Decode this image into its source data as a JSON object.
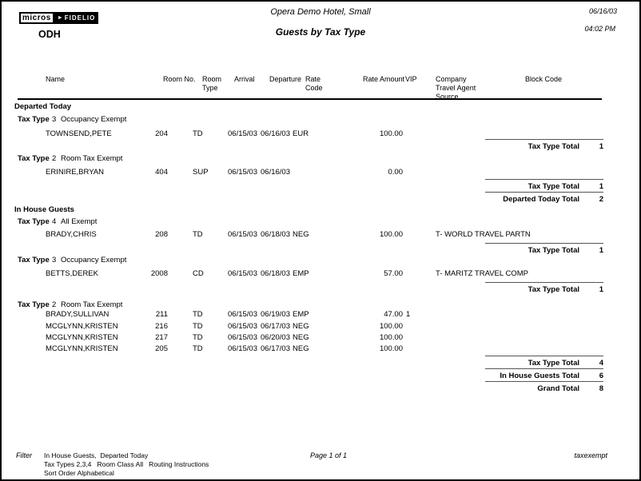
{
  "header": {
    "logo_micros": "micros",
    "logo_arrow": "►",
    "logo_fidelio": "FIDELIO",
    "property_code": "ODH",
    "title": "Opera Demo Hotel, Small",
    "subtitle": "Guests by Tax Type",
    "date": "06/16/03",
    "time": "04:02 PM"
  },
  "columns": {
    "name": "Name",
    "room_no": "Room No.",
    "room_type_line1": "Room",
    "room_type_line2": "Type",
    "arrival": "Arrival",
    "departure": "Departure",
    "rate_code_line1": "Rate",
    "rate_code_line2": "Code",
    "rate_amount": "Rate Amount",
    "vip": "VIP",
    "company_line1": "Company",
    "company_line2": "Travel Agent",
    "company_line3": "Source",
    "block_code": "Block Code"
  },
  "report": {
    "lines": [
      {
        "type": "section",
        "label": "Departed Today"
      },
      {
        "type": "taxtype",
        "label": "Tax Type",
        "number": "3",
        "description": "Occupancy Exempt"
      },
      {
        "type": "guest",
        "name": "TOWNSEND,PETE",
        "room_no": "204",
        "room_type": "TD",
        "arrival": "06/15/03",
        "departure": "06/16/03",
        "rate_code": "EUR",
        "rate_amount": "100.00",
        "vip": "",
        "company": ""
      },
      {
        "type": "total",
        "label": "Tax Type Total",
        "value": "1"
      },
      {
        "type": "taxtype",
        "label": "Tax Type",
        "number": "2",
        "description": "Room Tax Exempt"
      },
      {
        "type": "guest",
        "name": "ERINIRE,BRYAN",
        "room_no": "404",
        "room_type": "SUP",
        "arrival": "06/15/03",
        "departure": "06/16/03",
        "rate_code": "",
        "rate_amount": "0.00",
        "vip": "",
        "company": ""
      },
      {
        "type": "total",
        "label": "Tax Type Total",
        "value": "1"
      },
      {
        "type": "total",
        "label": "Departed Today Total",
        "value": "2"
      },
      {
        "type": "section",
        "label": "In House Guests"
      },
      {
        "type": "taxtype",
        "label": "Tax Type",
        "number": "4",
        "description": "All Exempt"
      },
      {
        "type": "guest",
        "name": "BRADY,CHRIS",
        "room_no": "208",
        "room_type": "TD",
        "arrival": "06/15/03",
        "departure": "06/18/03",
        "rate_code": "NEG",
        "rate_amount": "100.00",
        "vip": "",
        "company": "T- WORLD TRAVEL PARTN"
      },
      {
        "type": "total",
        "label": "Tax Type Total",
        "value": "1"
      },
      {
        "type": "taxtype",
        "label": "Tax Type",
        "number": "3",
        "description": "Occupancy Exempt"
      },
      {
        "type": "guest",
        "name": "BETTS,DEREK",
        "room_no": "2008",
        "room_type": "CD",
        "arrival": "06/15/03",
        "departure": "06/18/03",
        "rate_code": "EMP",
        "rate_amount": "57.00",
        "vip": "",
        "company": "T- MARITZ TRAVEL COMP"
      },
      {
        "type": "total",
        "label": "Tax Type Total",
        "value": "1"
      },
      {
        "type": "taxtype",
        "label": "Tax Type",
        "number": "2",
        "description": "Room Tax Exempt"
      },
      {
        "type": "guest",
        "name": "BRADY,SULLIVAN",
        "room_no": "211",
        "room_type": "TD",
        "arrival": "06/15/03",
        "departure": "06/19/03",
        "rate_code": "EMP",
        "rate_amount": "47.00",
        "vip": "1",
        "company": ""
      },
      {
        "type": "guest",
        "name": "MCGLYNN,KRISTEN",
        "room_no": "216",
        "room_type": "TD",
        "arrival": "06/15/03",
        "departure": "06/17/03",
        "rate_code": "NEG",
        "rate_amount": "100.00",
        "vip": "",
        "company": ""
      },
      {
        "type": "guest",
        "name": "MCGLYNN,KRISTEN",
        "room_no": "217",
        "room_type": "TD",
        "arrival": "06/15/03",
        "departure": "06/20/03",
        "rate_code": "NEG",
        "rate_amount": "100.00",
        "vip": "",
        "company": ""
      },
      {
        "type": "guest",
        "name": "MCGLYNN,KRISTEN",
        "room_no": "205",
        "room_type": "TD",
        "arrival": "06/15/03",
        "departure": "06/17/03",
        "rate_code": "NEG",
        "rate_amount": "100.00",
        "vip": "",
        "company": ""
      },
      {
        "type": "total",
        "label": "Tax Type Total",
        "value": "4"
      },
      {
        "type": "total",
        "label": "In House Guests Total",
        "value": "6"
      },
      {
        "type": "total",
        "label": "Grand Total",
        "value": "8"
      }
    ]
  },
  "footer": {
    "filter_label": "Filter",
    "filter_line1": "In House Guests,  Departed Today",
    "filter_line2": "Tax Types 2,3,4   Room Class All   Routing Instructions",
    "filter_line3": "Sort Order Alphabetical",
    "page_indicator": "Page 1 of 1",
    "report_code": "taxexempt"
  }
}
